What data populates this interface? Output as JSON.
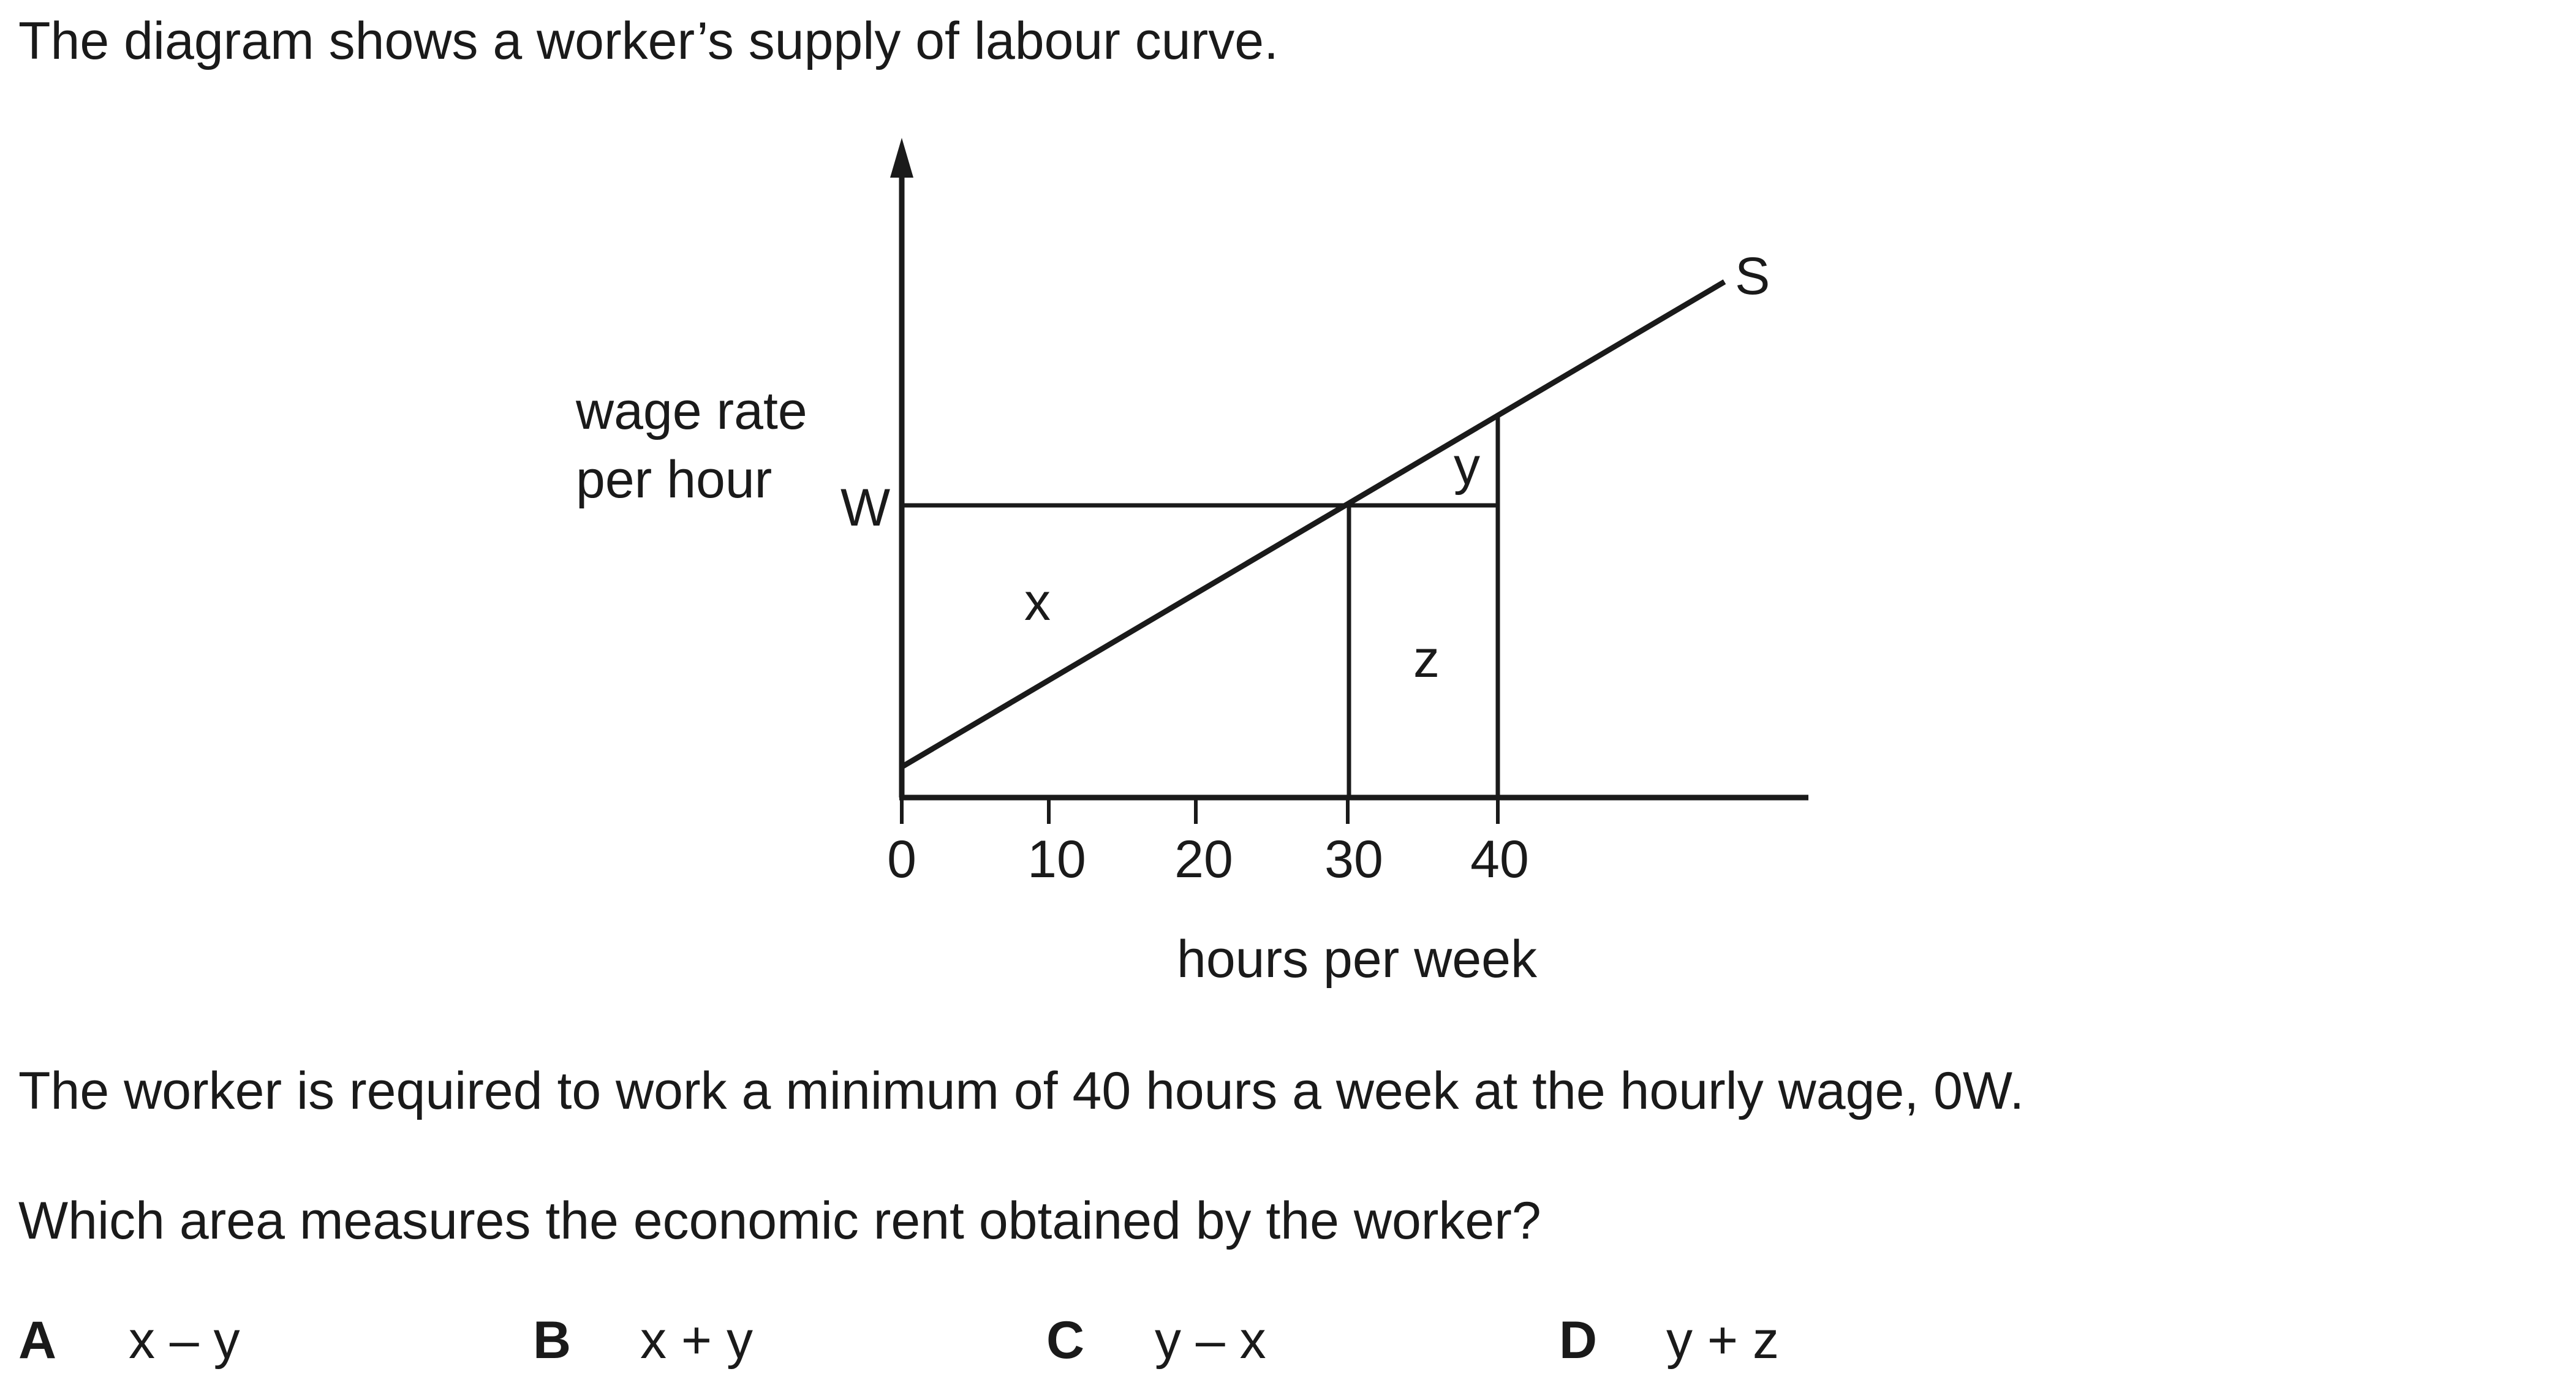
{
  "question": {
    "intro": "The diagram shows a worker’s supply of labour curve.",
    "statement": "The worker is required to work a minimum of 40 hours a week at the hourly wage, 0W.",
    "prompt": "Which area measures the economic rent obtained by the worker?"
  },
  "diagram": {
    "y_axis_label_line1": "wage rate",
    "y_axis_label_line2": "per hour",
    "x_axis_label": "hours per week",
    "wage_label": "W",
    "curve_label": "S",
    "origin_label": "0",
    "x_ticks": [
      "10",
      "20",
      "30",
      "40"
    ],
    "area_labels": {
      "x": "x",
      "y": "y",
      "z": "z"
    }
  },
  "options": [
    {
      "letter": "A",
      "text": "x – y"
    },
    {
      "letter": "B",
      "text": "x + y"
    },
    {
      "letter": "C",
      "text": "y – x"
    },
    {
      "letter": "D",
      "text": "y + z"
    }
  ]
}
